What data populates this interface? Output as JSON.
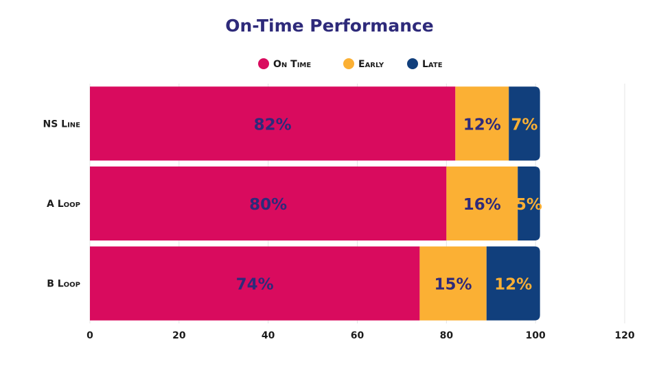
{
  "chart_data": {
    "type": "bar",
    "orientation": "horizontal",
    "stacked": true,
    "title": "On-Time Performance",
    "categories": [
      "NS Line",
      "A Loop",
      "B Loop"
    ],
    "series": [
      {
        "name": "On Time",
        "values": [
          82,
          80,
          74
        ],
        "color": "#d90b5e",
        "label_color": "#2e2a7a"
      },
      {
        "name": "Early",
        "values": [
          12,
          16,
          15
        ],
        "color": "#fbb034",
        "label_color": "#2e2a7a"
      },
      {
        "name": "Late",
        "values": [
          7,
          5,
          12
        ],
        "color": "#113f7c",
        "label_color": "#fbb034"
      }
    ],
    "data_labels": [
      [
        "82%",
        "80%",
        "74%"
      ],
      [
        "12%",
        "16%",
        "15%"
      ],
      [
        "7%",
        "5%",
        "12%"
      ]
    ],
    "xlim": [
      0,
      120
    ],
    "xticks": [
      0,
      20,
      40,
      60,
      80,
      100,
      120
    ],
    "xlabel": "",
    "ylabel": "",
    "grid": "vertical",
    "legend": "top-center"
  }
}
